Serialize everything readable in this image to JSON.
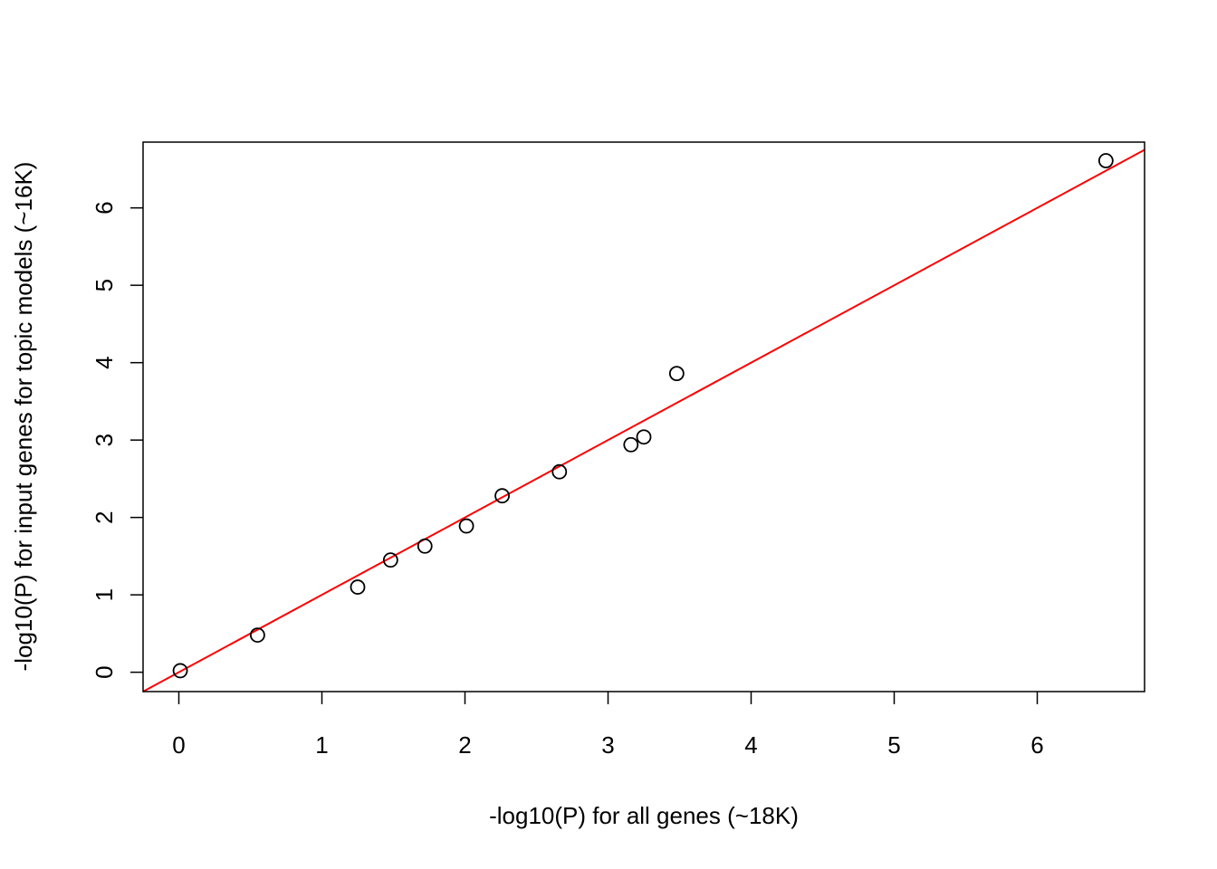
{
  "chart_data": {
    "type": "scatter",
    "title": "",
    "xlabel": "-log10(P) for all genes (~18K)",
    "ylabel": "-log10(P) for input genes for topic models (~16K)",
    "xlim": [
      -0.25,
      6.75
    ],
    "ylim": [
      -0.25,
      6.85
    ],
    "xticks": [
      "0",
      "1",
      "2",
      "3",
      "4",
      "5",
      "6"
    ],
    "yticks": [
      "0",
      "1",
      "2",
      "3",
      "4",
      "5",
      "6"
    ],
    "grid": false,
    "series": [
      {
        "marker": "open-circle",
        "color": "#000000",
        "points": [
          {
            "x": 0.01,
            "y": 0.02
          },
          {
            "x": 0.55,
            "y": 0.48
          },
          {
            "x": 1.25,
            "y": 1.1
          },
          {
            "x": 1.48,
            "y": 1.45
          },
          {
            "x": 1.72,
            "y": 1.63
          },
          {
            "x": 2.01,
            "y": 1.89
          },
          {
            "x": 2.26,
            "y": 2.28
          },
          {
            "x": 2.66,
            "y": 2.59
          },
          {
            "x": 3.16,
            "y": 2.94
          },
          {
            "x": 3.25,
            "y": 3.04
          },
          {
            "x": 3.48,
            "y": 3.86
          },
          {
            "x": 6.48,
            "y": 6.61
          }
        ]
      }
    ],
    "reference_line": {
      "type": "identity",
      "intercept": 0,
      "slope": 1,
      "color": "#ff0000"
    }
  }
}
